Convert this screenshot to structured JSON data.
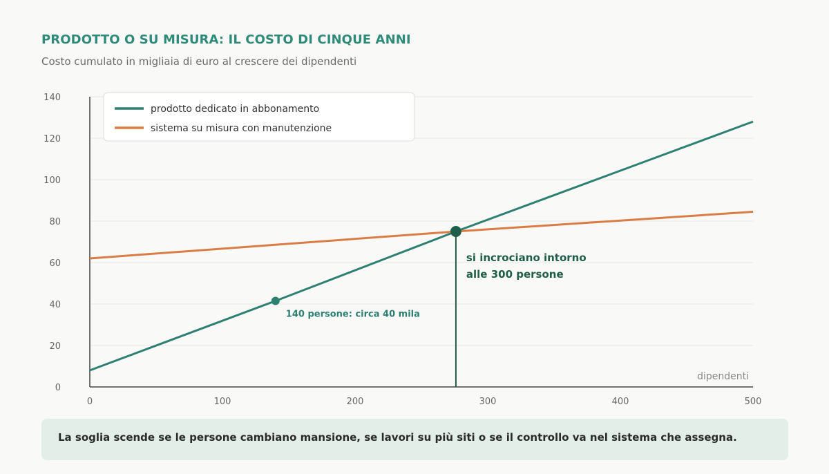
{
  "title": "PRODOTTO O SU MISURA: IL COSTO DI CINQUE ANNI",
  "subtitle": "Costo cumulato in migliaia di euro al crescere dei dipendenti",
  "note": "La soglia scende se le persone cambiano mansione, se lavori su più siti o se il controllo va nel sistema che assegna.",
  "colors": {
    "series_product": "#2e8073",
    "series_custom": "#d97d45",
    "highlight": "#1f5e4a",
    "grid": "#e6e6e4",
    "axis": "#444444"
  },
  "chart_data": {
    "type": "line",
    "xlabel": "dipendenti",
    "ylabel": "",
    "xlim": [
      0,
      500
    ],
    "ylim": [
      0,
      140
    ],
    "xticks": [
      0,
      100,
      200,
      300,
      400,
      500
    ],
    "yticks": [
      0,
      20,
      40,
      60,
      80,
      100,
      120,
      140
    ],
    "grid": true,
    "legend_position": "top-left",
    "series": [
      {
        "name": "prodotto dedicato in abbonamento",
        "color": "#2e8073",
        "x": [
          0,
          140,
          276,
          500
        ],
        "y": [
          8,
          41.5,
          75,
          128
        ]
      },
      {
        "name": "sistema su misura con manutenzione",
        "color": "#d97d45",
        "x": [
          0,
          276,
          500
        ],
        "y": [
          62,
          75,
          84.5
        ]
      }
    ],
    "annotations": [
      {
        "text": "140 persone: circa 40 mila",
        "x": 140,
        "y": 41.5
      },
      {
        "text_lines": [
          "si incrociano intorno",
          "alle 300 persone"
        ],
        "x": 276,
        "y": 75
      }
    ]
  }
}
